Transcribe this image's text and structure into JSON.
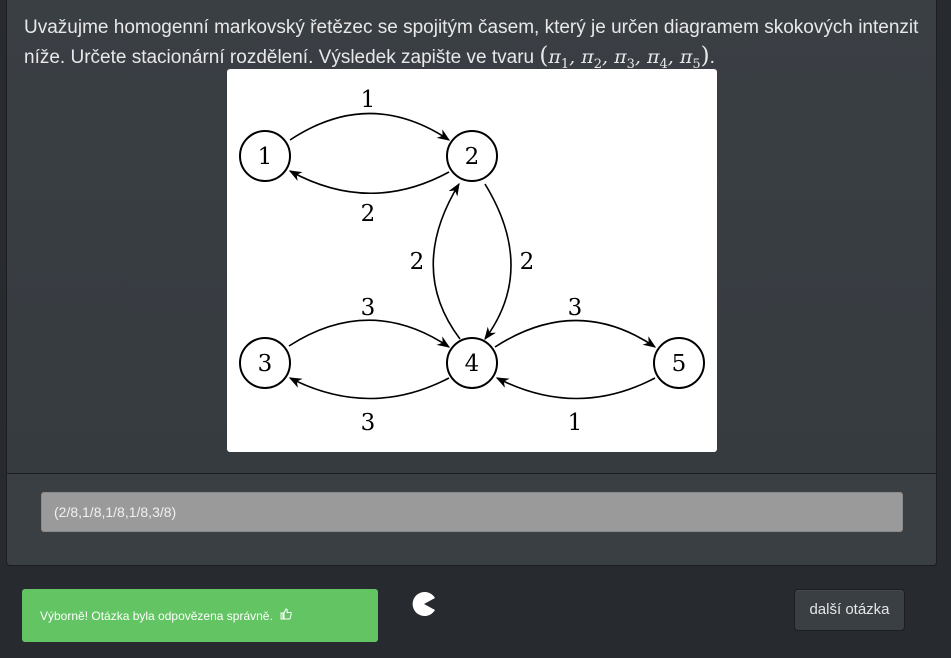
{
  "question": {
    "text": "Uvažujme homogenní markovský řetězec se spojitým časem, který je určen diagramem skokových intenzit níže. Určete stacionární rozdělení. Výsledek zapište ve tvaru",
    "math_symbol": "π",
    "math_subscripts": [
      "1",
      "2",
      "3",
      "4",
      "5"
    ],
    "end_punctuation": "."
  },
  "diagram": {
    "nodes": [
      {
        "id": "n1",
        "label": "1"
      },
      {
        "id": "n2",
        "label": "2"
      },
      {
        "id": "n3",
        "label": "3"
      },
      {
        "id": "n4",
        "label": "4"
      },
      {
        "id": "n5",
        "label": "5"
      }
    ],
    "edges": [
      {
        "from": "1",
        "to": "2",
        "rate": "1"
      },
      {
        "from": "2",
        "to": "1",
        "rate": "2"
      },
      {
        "from": "4",
        "to": "2",
        "rate": "2"
      },
      {
        "from": "2",
        "to": "4",
        "rate": "2"
      },
      {
        "from": "3",
        "to": "4",
        "rate": "3"
      },
      {
        "from": "4",
        "to": "3",
        "rate": "3"
      },
      {
        "from": "4",
        "to": "5",
        "rate": "3"
      },
      {
        "from": "5",
        "to": "4",
        "rate": "1"
      }
    ]
  },
  "answer": {
    "value": "(2/8,1/8,1/8,1/8,3/8)"
  },
  "feedback": {
    "message": "Výborně! Otázka byla odpovězena správně.",
    "icon": "thumbs-up-icon",
    "color": "#62c462"
  },
  "next_button": {
    "label": "další otázka"
  },
  "colors": {
    "background": "#272b30",
    "panel": "#3a3f44",
    "input": "#9a9a9a"
  }
}
